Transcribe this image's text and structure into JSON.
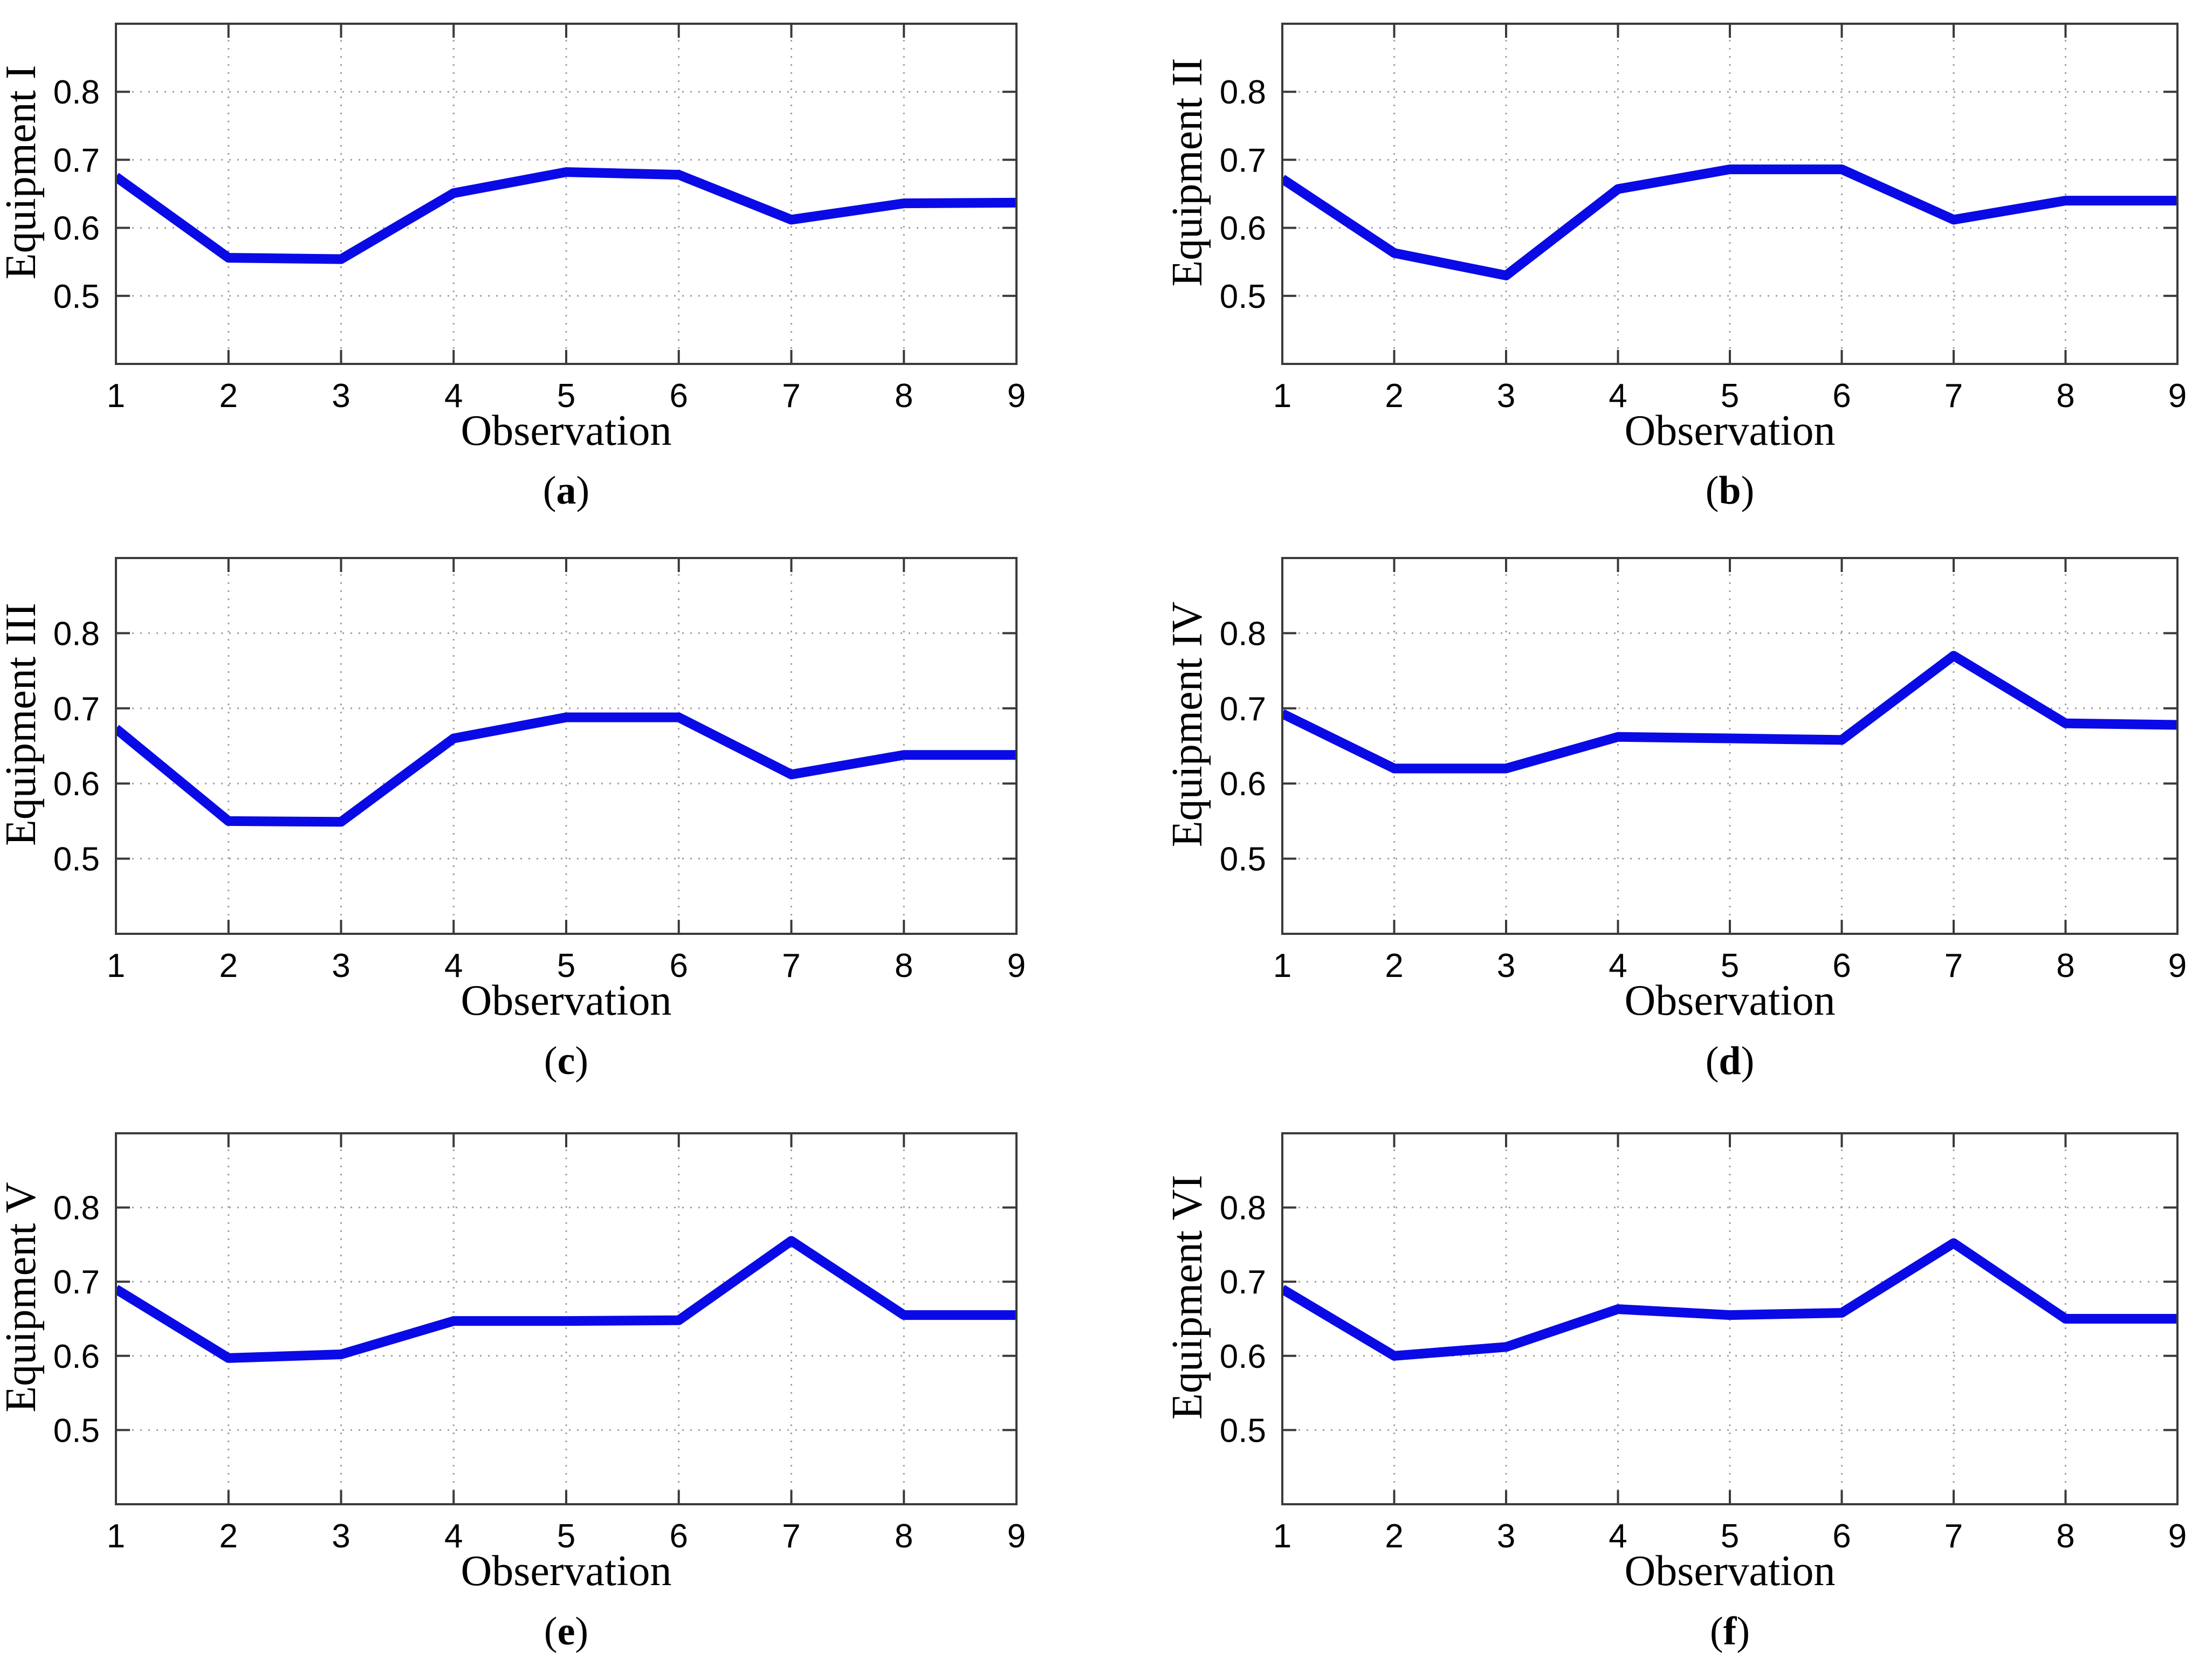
{
  "style": {
    "line_color": "#0a0ae6",
    "grid_color": "#9f9f9f",
    "axis_color": "#3a3a3a",
    "background": "#ffffff"
  },
  "chart_data": [
    {
      "type": "line",
      "panel": "a",
      "ylabel": "Equipment I",
      "xlabel": "Observation",
      "caption_open": "(",
      "caption_letter": "a",
      "caption_close": ")",
      "x": [
        1,
        2,
        3,
        4,
        5,
        6,
        7,
        8,
        9
      ],
      "values": [
        0.675,
        0.556,
        0.554,
        0.651,
        0.682,
        0.678,
        0.612,
        0.636,
        0.637
      ],
      "xlim": [
        1,
        9
      ],
      "ylim": [
        0.4,
        0.9
      ],
      "xticks": [
        1,
        2,
        3,
        4,
        5,
        6,
        7,
        8,
        9
      ],
      "yticks": [
        0.5,
        0.6,
        0.7,
        0.8
      ],
      "grid": true,
      "line_color": "#0a0ae6"
    },
    {
      "type": "line",
      "panel": "b",
      "ylabel": "Equipment II",
      "xlabel": "Observation",
      "caption_open": "(",
      "caption_letter": "b",
      "caption_close": ")",
      "x": [
        1,
        2,
        3,
        4,
        5,
        6,
        7,
        8,
        9
      ],
      "values": [
        0.672,
        0.563,
        0.53,
        0.657,
        0.686,
        0.686,
        0.612,
        0.64,
        0.64
      ],
      "xlim": [
        1,
        9
      ],
      "ylim": [
        0.4,
        0.9
      ],
      "xticks": [
        1,
        2,
        3,
        4,
        5,
        6,
        7,
        8,
        9
      ],
      "yticks": [
        0.5,
        0.6,
        0.7,
        0.8
      ],
      "grid": true,
      "line_color": "#0a0ae6"
    },
    {
      "type": "line",
      "panel": "c",
      "ylabel": "Equipment III",
      "xlabel": "Observation",
      "caption_open": "(",
      "caption_letter": "c",
      "caption_close": ")",
      "x": [
        1,
        2,
        3,
        4,
        5,
        6,
        7,
        8,
        9
      ],
      "values": [
        0.673,
        0.55,
        0.549,
        0.66,
        0.688,
        0.688,
        0.612,
        0.638,
        0.638
      ],
      "xlim": [
        1,
        9
      ],
      "ylim": [
        0.4,
        0.9
      ],
      "xticks": [
        1,
        2,
        3,
        4,
        5,
        6,
        7,
        8,
        9
      ],
      "yticks": [
        0.5,
        0.6,
        0.7,
        0.8
      ],
      "grid": true,
      "line_color": "#0a0ae6"
    },
    {
      "type": "line",
      "panel": "d",
      "ylabel": "Equipment IV",
      "xlabel": "Observation",
      "caption_open": "(",
      "caption_letter": "d",
      "caption_close": ")",
      "x": [
        1,
        2,
        3,
        4,
        5,
        6,
        7,
        8,
        9
      ],
      "values": [
        0.693,
        0.62,
        0.62,
        0.662,
        0.66,
        0.658,
        0.77,
        0.68,
        0.678
      ],
      "xlim": [
        1,
        9
      ],
      "ylim": [
        0.4,
        0.9
      ],
      "xticks": [
        1,
        2,
        3,
        4,
        5,
        6,
        7,
        8,
        9
      ],
      "yticks": [
        0.5,
        0.6,
        0.7,
        0.8
      ],
      "grid": true,
      "line_color": "#0a0ae6"
    },
    {
      "type": "line",
      "panel": "e",
      "ylabel": "Equipment V",
      "xlabel": "Observation",
      "caption_open": "(",
      "caption_letter": "e",
      "caption_close": ")",
      "x": [
        1,
        2,
        3,
        4,
        5,
        6,
        7,
        8,
        9
      ],
      "values": [
        0.69,
        0.597,
        0.602,
        0.647,
        0.647,
        0.648,
        0.755,
        0.655,
        0.655
      ],
      "xlim": [
        1,
        9
      ],
      "ylim": [
        0.4,
        0.9
      ],
      "xticks": [
        1,
        2,
        3,
        4,
        5,
        6,
        7,
        8,
        9
      ],
      "yticks": [
        0.5,
        0.6,
        0.7,
        0.8
      ],
      "grid": true,
      "line_color": "#0a0ae6"
    },
    {
      "type": "line",
      "panel": "f",
      "ylabel": "Equipment VI",
      "xlabel": "Observation",
      "caption_open": "(",
      "caption_letter": "f",
      "caption_close": ")",
      "x": [
        1,
        2,
        3,
        4,
        5,
        6,
        7,
        8,
        9
      ],
      "values": [
        0.69,
        0.6,
        0.612,
        0.663,
        0.655,
        0.658,
        0.752,
        0.65,
        0.65
      ],
      "xlim": [
        1,
        9
      ],
      "ylim": [
        0.4,
        0.9
      ],
      "xticks": [
        1,
        2,
        3,
        4,
        5,
        6,
        7,
        8,
        9
      ],
      "yticks": [
        0.5,
        0.6,
        0.7,
        0.8
      ],
      "grid": true,
      "line_color": "#0a0ae6"
    }
  ]
}
